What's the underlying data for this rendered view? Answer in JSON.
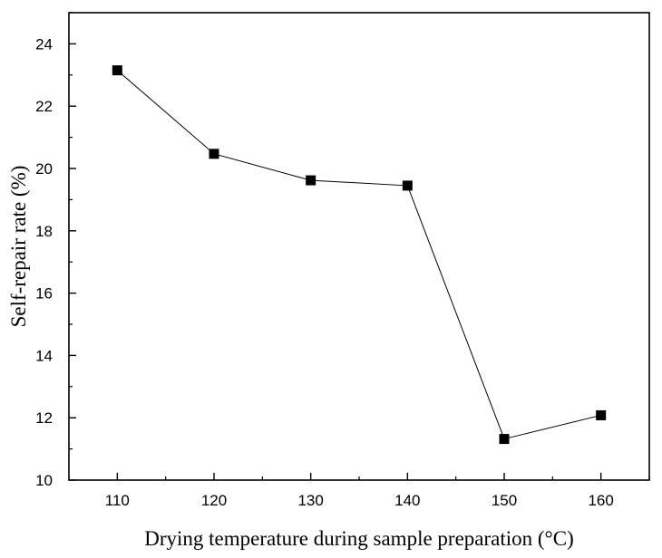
{
  "chart_data": {
    "type": "line",
    "xlabel": "Drying temperature during sample preparation (°C)",
    "ylabel": "Self-repair rate  (%)",
    "x": [
      110,
      120,
      130,
      140,
      150,
      160
    ],
    "series": [
      {
        "values": [
          23.15,
          20.47,
          19.62,
          19.45,
          11.32,
          12.08
        ]
      }
    ],
    "xlim": [
      105,
      165
    ],
    "ylim": [
      10,
      25
    ],
    "xticks": [
      110,
      120,
      130,
      140,
      150,
      160
    ],
    "yticks": [
      10,
      12,
      14,
      16,
      18,
      20,
      22,
      24
    ],
    "marker": "square",
    "line_color": "#000000",
    "marker_color": "#000000",
    "grid": false,
    "legend": "none"
  }
}
